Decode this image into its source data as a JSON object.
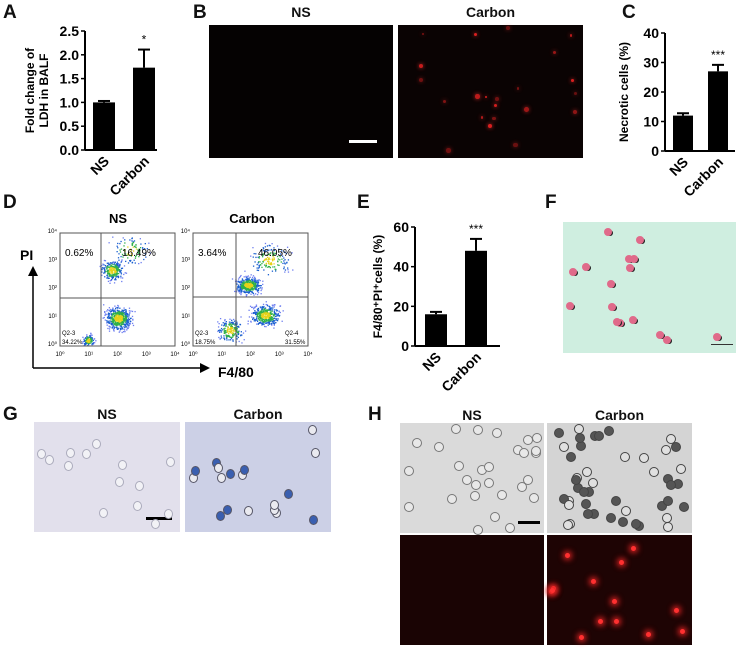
{
  "panels": {
    "A": "A",
    "B": "B",
    "C": "C",
    "D": "D",
    "E": "E",
    "F": "F",
    "G": "G",
    "H": "H"
  },
  "groups": {
    "ns": "NS",
    "carbon": "Carbon"
  },
  "flow": {
    "y_axis": "PI",
    "x_axis": "F4/80",
    "ns": {
      "upper_left": "0.62%",
      "upper_right": "16.49%",
      "lower_left_gate": "Q2-3",
      "lower_left": "34.22%"
    },
    "carbon": {
      "upper_left": "3.64%",
      "upper_right": "46.05%",
      "lower_left_gate": "Q2-3",
      "lower_left": "18.75%",
      "lower_right_gate": "Q2-4",
      "lower_right": "31.55%"
    },
    "y_ticks": [
      "10⁰",
      "10¹",
      "10²",
      "10³",
      "10⁴"
    ],
    "x_ticks": [
      "10⁰",
      "10¹",
      "10²",
      "10³",
      "10⁴"
    ]
  },
  "colors": {
    "bar": "#000000",
    "fluor_red": "#e02020",
    "stain_pink": "#e06a8a",
    "f_background": "#cfeee0",
    "g_background": "#dcdcea",
    "h_bright": "#d9d9d9"
  },
  "chart_data": [
    {
      "type": "bar",
      "panel": "A",
      "categories": [
        "NS",
        "Carbon"
      ],
      "values": [
        1.0,
        1.73
      ],
      "errors": [
        0.03,
        0.38
      ],
      "significance": [
        "",
        "*"
      ],
      "ylabel_line1": "Fold change of",
      "ylabel_line2": "LDH  in BALF",
      "ylim": [
        0,
        2.5
      ],
      "yticks": [
        "0.0",
        "0.5",
        "1.0",
        "1.5",
        "2.0",
        "2.5"
      ]
    },
    {
      "type": "bar",
      "panel": "C",
      "categories": [
        "NS",
        "Carbon"
      ],
      "values": [
        12,
        27
      ],
      "errors": [
        0.8,
        2.2
      ],
      "significance": [
        "",
        "***"
      ],
      "ylabel": "Necrotic cells (%)",
      "ylim": [
        0,
        40
      ],
      "yticks": [
        "0",
        "10",
        "20",
        "30",
        "40"
      ]
    },
    {
      "type": "bar",
      "panel": "E",
      "categories": [
        "NS",
        "Carbon"
      ],
      "values": [
        16,
        48
      ],
      "errors": [
        1.2,
        6
      ],
      "significance": [
        "",
        "***"
      ],
      "ylabel": "F4/80⁺PI⁺cells  (%)",
      "ylim": [
        0,
        60
      ],
      "yticks": [
        "0",
        "20",
        "40",
        "60"
      ]
    }
  ]
}
